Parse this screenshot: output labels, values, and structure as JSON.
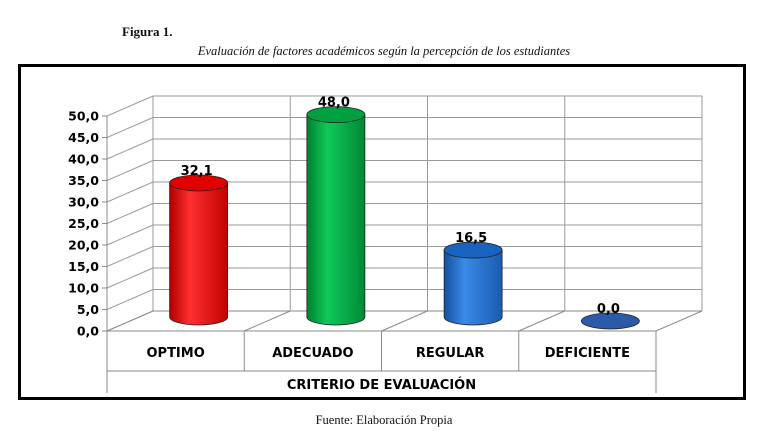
{
  "figure": {
    "label": "Figura 1.",
    "title": "Evaluación de factores académicos según la percepción de los estudiantes",
    "source": "Fuente: Elaboración Propia"
  },
  "chart_data": {
    "type": "bar",
    "style": "3d-cylinder",
    "categories": [
      "OPTIMO",
      "ADECUADO",
      "REGULAR",
      "DEFICIENTE"
    ],
    "values": [
      32.1,
      48.0,
      16.5,
      0.0
    ],
    "value_labels": [
      "32,1",
      "48,0",
      "16,5",
      "0,0"
    ],
    "colors": [
      "#ff0000",
      "#00b050",
      "#1f6fd1",
      "#2a5aa8"
    ],
    "xlabel": "CRITERIO  DE  EVALUACIÓN",
    "ylabel": "",
    "ylim": [
      0,
      50
    ],
    "yticks": [
      "0,0",
      "5,0",
      "10,0",
      "15,0",
      "20,0",
      "25,0",
      "30,0",
      "35,0",
      "40,0",
      "45,0",
      "50,0"
    ],
    "grid": true,
    "legend": "none"
  }
}
